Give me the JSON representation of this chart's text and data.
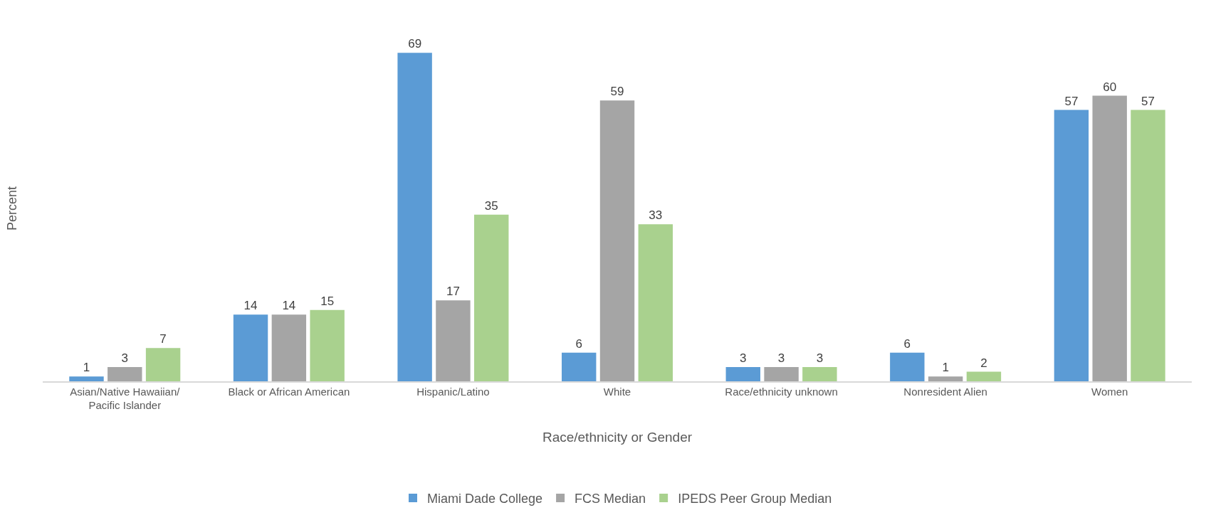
{
  "chart_data": {
    "type": "bar",
    "xlabel": "Race/ethnicity or Gender",
    "ylabel": "Percent",
    "categories": [
      "Asian/Native Hawaiian/Pacific Islander",
      "Black or African American",
      "Hispanic/Latino",
      "White",
      "Race/ethnicity unknown",
      "Nonresident Alien",
      "Women"
    ],
    "series": [
      {
        "name": "Miami Dade College",
        "color": "#5b9bd5",
        "values": [
          1,
          14,
          69,
          6,
          3,
          6,
          57
        ]
      },
      {
        "name": "FCS Median",
        "color": "#a5a5a5",
        "values": [
          3,
          14,
          17,
          59,
          3,
          1,
          60
        ]
      },
      {
        "name": "IPEDS Peer Group Median",
        "color": "#a9d18e",
        "values": [
          7,
          15,
          35,
          33,
          3,
          2,
          57
        ]
      }
    ],
    "data_labels": true,
    "grid": false,
    "legend": "bottom",
    "tick_labels": "x"
  }
}
